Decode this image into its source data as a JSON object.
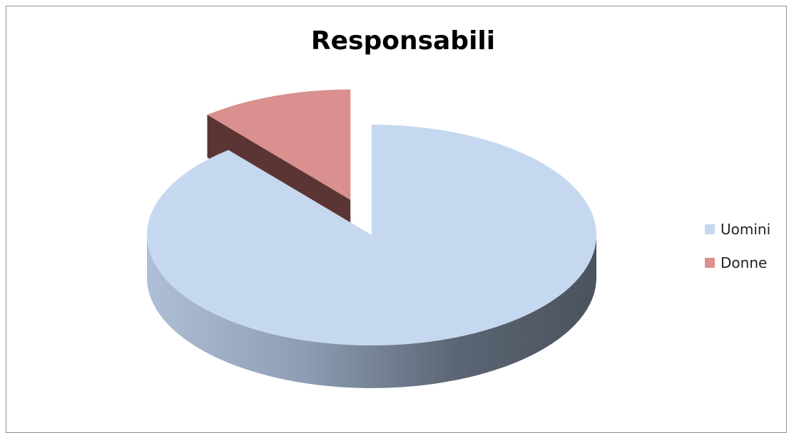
{
  "chart_data": {
    "type": "pie",
    "title": "Responsabili",
    "categories": [
      "Uomini",
      "Donne"
    ],
    "values": [
      89,
      11
    ],
    "colors": [
      "#c5d8ef",
      "#d9908e"
    ],
    "exploded": [
      "Donne"
    ],
    "legend_position": "right",
    "three_d": true
  }
}
